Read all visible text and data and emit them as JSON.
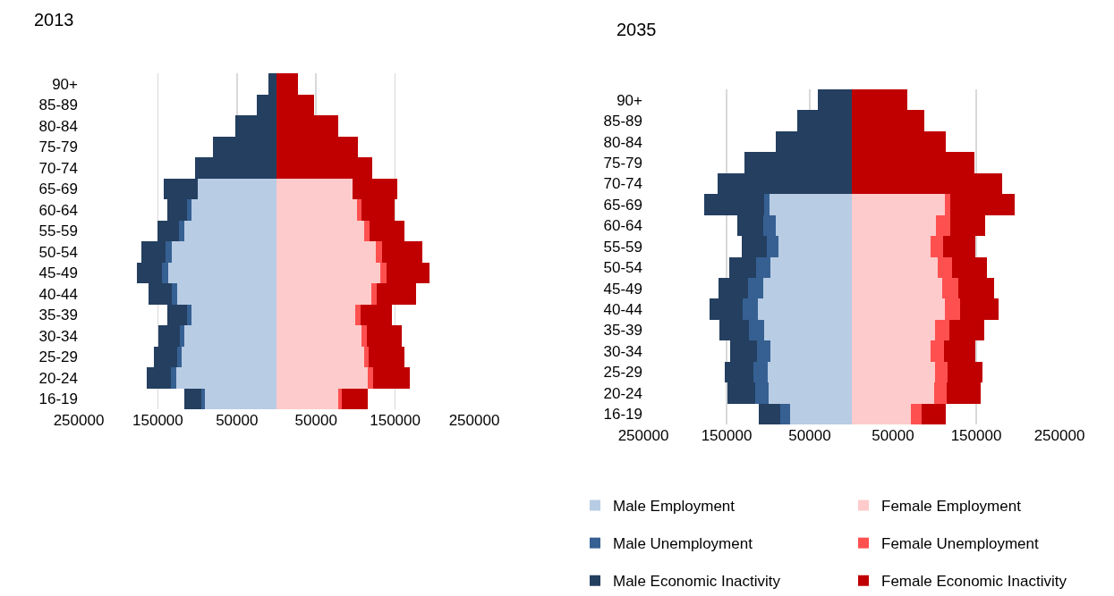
{
  "chart_data": [
    {
      "type": "bar",
      "title": "2013",
      "orientation": "horizontal",
      "stacked": true,
      "grid": "x",
      "legend": false,
      "categories": [
        "90+",
        "85-89",
        "80-84",
        "75-79",
        "70-74",
        "65-69",
        "60-64",
        "55-59",
        "50-54",
        "45-49",
        "40-44",
        "35-39",
        "30-34",
        "25-29",
        "20-24",
        "16-19"
      ],
      "xlim": [
        -250000,
        250000
      ],
      "xticks": [
        {
          "value": -250000,
          "label": "250000"
        },
        {
          "value": -150000,
          "label": "150000"
        },
        {
          "value": -50000,
          "label": "50000"
        },
        {
          "value": 50000,
          "label": "50000"
        },
        {
          "value": 150000,
          "label": "150000"
        },
        {
          "value": 250000,
          "label": "250000"
        }
      ],
      "series": [
        {
          "color": "#b8cce4",
          "values": [
            0,
            0,
            0,
            0,
            0,
            -99000,
            -107000,
            -117000,
            -132000,
            -137000,
            -126000,
            -107000,
            -116000,
            -120000,
            -127000,
            -90000
          ]
        },
        {
          "color": "#fdcbcb",
          "values": [
            0,
            0,
            0,
            0,
            0,
            96000,
            102000,
            111000,
            125000,
            131000,
            120000,
            100000,
            108000,
            111000,
            115000,
            78000
          ]
        },
        {
          "color": "#366092",
          "values": [
            0,
            0,
            0,
            0,
            0,
            0,
            -6000,
            -6000,
            -8000,
            -8000,
            -6000,
            -6000,
            -6000,
            -6000,
            -7000,
            -5000
          ]
        },
        {
          "color": "#ff5050",
          "values": [
            0,
            0,
            0,
            0,
            0,
            0,
            6000,
            7000,
            8000,
            8000,
            7000,
            6000,
            6000,
            6000,
            7000,
            5000
          ]
        },
        {
          "color": "#243f60",
          "values": [
            -10000,
            -25000,
            -52000,
            -80000,
            -103000,
            -44000,
            -25000,
            -28000,
            -31000,
            -32000,
            -30000,
            -25000,
            -27000,
            -29000,
            -30000,
            -21000
          ]
        },
        {
          "color": "#c00000",
          "values": [
            27000,
            47000,
            78000,
            103000,
            121000,
            57000,
            41000,
            44000,
            51000,
            54000,
            49000,
            40000,
            44000,
            45000,
            47000,
            32000
          ]
        }
      ]
    },
    {
      "type": "bar",
      "title": "2035",
      "orientation": "horizontal",
      "stacked": true,
      "grid": "x",
      "legend": "bottom",
      "categories": [
        "90+",
        "85-89",
        "80-84",
        "75-79",
        "70-74",
        "65-69",
        "60-64",
        "55-59",
        "50-54",
        "45-49",
        "40-44",
        "35-39",
        "30-34",
        "25-29",
        "20-24",
        "16-19"
      ],
      "xlim": [
        -250000,
        250000
      ],
      "xticks": [
        {
          "value": -250000,
          "label": "250000"
        },
        {
          "value": -150000,
          "label": "150000"
        },
        {
          "value": -50000,
          "label": "50000"
        },
        {
          "value": 50000,
          "label": "50000"
        },
        {
          "value": 150000,
          "label": "150000"
        },
        {
          "value": 250000,
          "label": "250000"
        }
      ],
      "series": [
        {
          "name": "Male Employment",
          "color": "#b8cce4",
          "values": [
            0,
            0,
            0,
            0,
            0,
            -98000,
            -91000,
            -88000,
            -97000,
            -106000,
            -112000,
            -105000,
            -97000,
            -101000,
            -99000,
            -74000
          ]
        },
        {
          "name": "Female Employment",
          "color": "#fdcbcb",
          "values": [
            0,
            0,
            0,
            0,
            0,
            112000,
            102000,
            95000,
            104000,
            109000,
            112000,
            101000,
            95000,
            100000,
            99000,
            72000
          ]
        },
        {
          "name": "Male Unemployment",
          "color": "#366092",
          "values": [
            0,
            0,
            0,
            0,
            0,
            -7000,
            -15000,
            -14000,
            -17000,
            -18000,
            -19000,
            -18000,
            -16000,
            -17000,
            -17000,
            -12000
          ]
        },
        {
          "name": "Female Unemployment",
          "color": "#ff5050",
          "values": [
            0,
            0,
            0,
            0,
            0,
            7000,
            17000,
            15000,
            17000,
            19000,
            19000,
            17000,
            16000,
            16000,
            16000,
            12000
          ]
        },
        {
          "name": "Male Economic Inactivity",
          "color": "#243f60",
          "values": [
            -40000,
            -65000,
            -91000,
            -128000,
            -161000,
            -72000,
            -31000,
            -30000,
            -33000,
            -36000,
            -39000,
            -36000,
            -33000,
            -34000,
            -33000,
            -25000
          ]
        },
        {
          "name": "Female Economic Inactivity",
          "color": "#c00000",
          "values": [
            67000,
            88000,
            113000,
            148000,
            181000,
            77000,
            42000,
            39000,
            42000,
            44000,
            46000,
            42000,
            38000,
            41000,
            40000,
            29000
          ]
        }
      ]
    }
  ]
}
